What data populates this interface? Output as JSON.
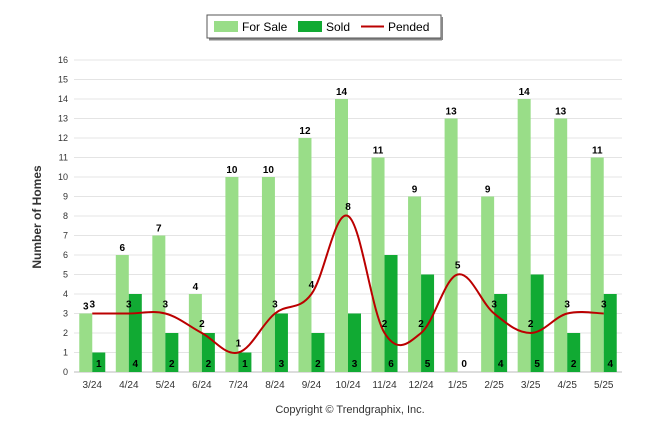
{
  "chart_data": {
    "type": "bar",
    "categories": [
      "3/24",
      "4/24",
      "5/24",
      "6/24",
      "7/24",
      "8/24",
      "9/24",
      "10/24",
      "11/24",
      "12/24",
      "1/25",
      "2/25",
      "3/25",
      "4/25",
      "5/25"
    ],
    "series": [
      {
        "name": "For Sale",
        "type": "bar",
        "color": "#99dd88",
        "values": [
          3,
          6,
          7,
          4,
          10,
          10,
          12,
          14,
          11,
          9,
          13,
          9,
          14,
          13,
          11
        ]
      },
      {
        "name": "Sold",
        "type": "bar",
        "color": "#11aa33",
        "values": [
          1,
          4,
          2,
          2,
          1,
          3,
          2,
          3,
          6,
          5,
          0,
          4,
          5,
          2,
          4
        ]
      },
      {
        "name": "Pended",
        "type": "line",
        "color": "#bb0000",
        "values": [
          3,
          3,
          3,
          2,
          1,
          3,
          4,
          8,
          2,
          2,
          5,
          3,
          2,
          3,
          3
        ]
      }
    ],
    "title": "",
    "xlabel": "",
    "ylabel": "Number of Homes",
    "ylim": [
      0,
      16
    ],
    "yticks": [
      0,
      1,
      2,
      3,
      4,
      5,
      6,
      7,
      8,
      9,
      10,
      11,
      12,
      13,
      14,
      15,
      16
    ],
    "grid": true,
    "legend": "top-center"
  },
  "footer": {
    "copyright": "Copyright © Trendgraphix, Inc."
  }
}
